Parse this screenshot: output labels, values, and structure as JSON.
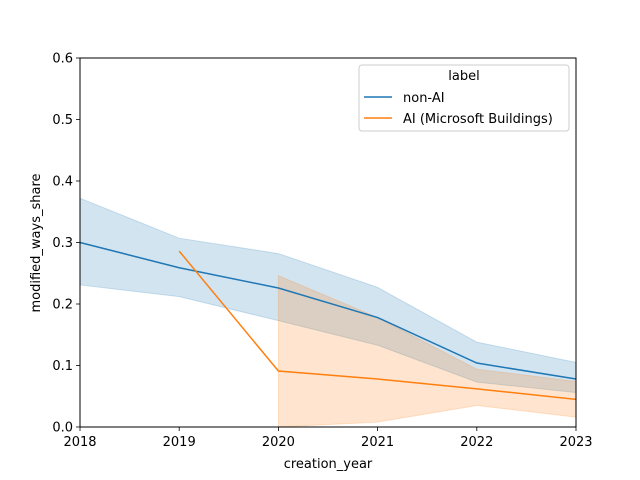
{
  "chart_data": {
    "type": "line",
    "xlabel": "creation_year",
    "ylabel": "modified_ways_share",
    "xlim": [
      2018,
      2023
    ],
    "ylim": [
      0,
      0.6
    ],
    "xticks": [
      "2018",
      "2019",
      "2020",
      "2021",
      "2022",
      "2023"
    ],
    "yticks": [
      "0.0",
      "0.1",
      "0.2",
      "0.3",
      "0.4",
      "0.5",
      "0.6"
    ],
    "grid": false,
    "legend": {
      "title": "label",
      "placement": "top-right"
    },
    "series": [
      {
        "name": "non-AI",
        "color": "#1f77b4",
        "x": [
          2018,
          2019,
          2020,
          2021,
          2022,
          2023
        ],
        "y": [
          0.3,
          0.259,
          0.226,
          0.178,
          0.104,
          0.078
        ],
        "ci_low": [
          0.231,
          0.212,
          0.173,
          0.133,
          0.073,
          0.056
        ],
        "ci_high": [
          0.372,
          0.307,
          0.282,
          0.227,
          0.138,
          0.105
        ]
      },
      {
        "name": "AI (Microsoft Buildings)",
        "color": "#ff7f0e",
        "x": [
          2019,
          2020,
          2021,
          2022,
          2023
        ],
        "y": [
          0.286,
          0.091,
          0.078,
          0.062,
          0.045
        ],
        "ci_x": [
          2020,
          2021,
          2022,
          2023
        ],
        "ci_low": [
          0.0,
          0.008,
          0.035,
          0.016
        ],
        "ci_high": [
          0.246,
          0.178,
          0.094,
          0.074
        ]
      }
    ]
  }
}
